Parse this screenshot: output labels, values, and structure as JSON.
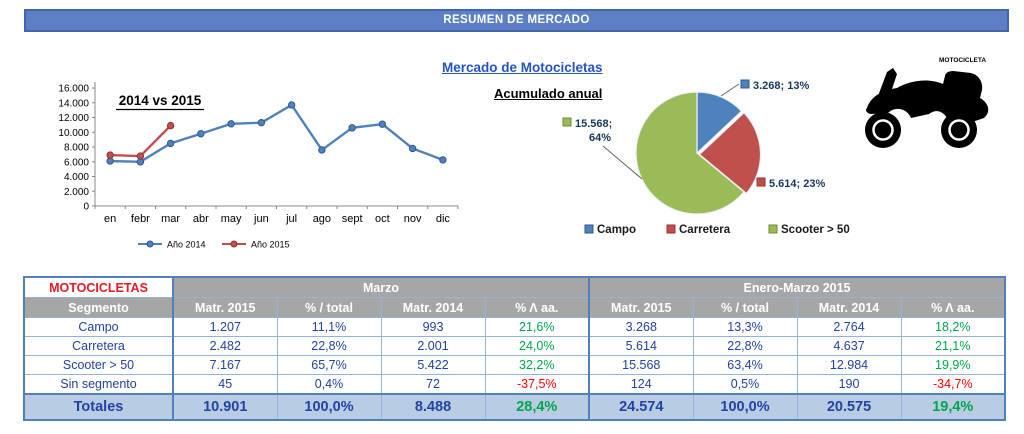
{
  "header": {
    "title": "RESUMEN DE MERCADO"
  },
  "moto": {
    "label": "MOTOCICLETA"
  },
  "chart_data": [
    {
      "type": "line",
      "title": "2014 vs 2015",
      "x": [
        "en",
        "febr",
        "mar",
        "abr",
        "may",
        "jun",
        "jul",
        "ago",
        "sept",
        "oct",
        "nov",
        "dic"
      ],
      "series": [
        {
          "name": "Año 2014",
          "color": "#4f81bd",
          "values": [
            6100,
            5990,
            8488,
            9800,
            11150,
            11300,
            13700,
            7600,
            10600,
            11100,
            7800,
            6250
          ]
        },
        {
          "name": "Año 2015",
          "color": "#c0504d",
          "values": [
            6900,
            6770,
            10901
          ]
        }
      ],
      "ylim": [
        0,
        16000
      ],
      "ytick_step": 2000,
      "grid": false,
      "legend_position": "bottom"
    },
    {
      "type": "pie",
      "title": "Mercado de Motocicletas",
      "subtitle": "Acumulado anual",
      "slices": [
        {
          "name": "Campo",
          "value": 3268,
          "pct": 13,
          "label": "3.268; 13%",
          "color": "#4f81bd"
        },
        {
          "name": "Carretera",
          "value": 5614,
          "pct": 23,
          "label": "5.614; 23%",
          "color": "#c0504d"
        },
        {
          "name": "Scooter > 50",
          "value": 15568,
          "pct": 64,
          "label": "15.568; 64%",
          "color": "#9bbb59"
        }
      ],
      "legend_position": "bottom"
    }
  ],
  "table": {
    "corner_label": "MOTOCICLETAS",
    "group_headers": [
      "Marzo",
      "Enero-Marzo 2015"
    ],
    "col_headers": [
      "Segmento",
      "Matr. 2015",
      "% / total",
      "Matr. 2014",
      "% Λ aa.",
      "Matr. 2015",
      "% / total",
      "Matr. 2014",
      "% Λ aa."
    ],
    "rows": [
      {
        "segment": "Campo",
        "cells": [
          "1.207",
          "11,1%",
          "993",
          "21,6%",
          "3.268",
          "13,3%",
          "2.764",
          "18,2%"
        ]
      },
      {
        "segment": "Carretera",
        "cells": [
          "2.482",
          "22,8%",
          "2.001",
          "24,0%",
          "5.614",
          "22,8%",
          "4.637",
          "21,1%"
        ]
      },
      {
        "segment": "Scooter > 50",
        "cells": [
          "7.167",
          "65,7%",
          "5.422",
          "32,2%",
          "15.568",
          "63,4%",
          "12.984",
          "19,9%"
        ]
      },
      {
        "segment": "Sin segmento",
        "cells": [
          "45",
          "0,4%",
          "72",
          "-37,5%",
          "124",
          "0,5%",
          "190",
          "-34,7%"
        ]
      }
    ],
    "totals": {
      "segment": "Totales",
      "cells": [
        "10.901",
        "100,0%",
        "8.488",
        "28,4%",
        "24.574",
        "100,0%",
        "20.575",
        "19,4%"
      ]
    }
  },
  "colors": {
    "title_bar_bg": "#5b80c6",
    "accent_blue": "#4f81bd",
    "accent_red": "#c0504d",
    "accent_green": "#9bbb59",
    "positive": "#00a550",
    "negative": "#ff0000",
    "table_text_blue": "#2342a2",
    "header_gray": "#a6a6a6",
    "totals_bg": "#b8cce4",
    "corner_red": "#e31b23"
  }
}
